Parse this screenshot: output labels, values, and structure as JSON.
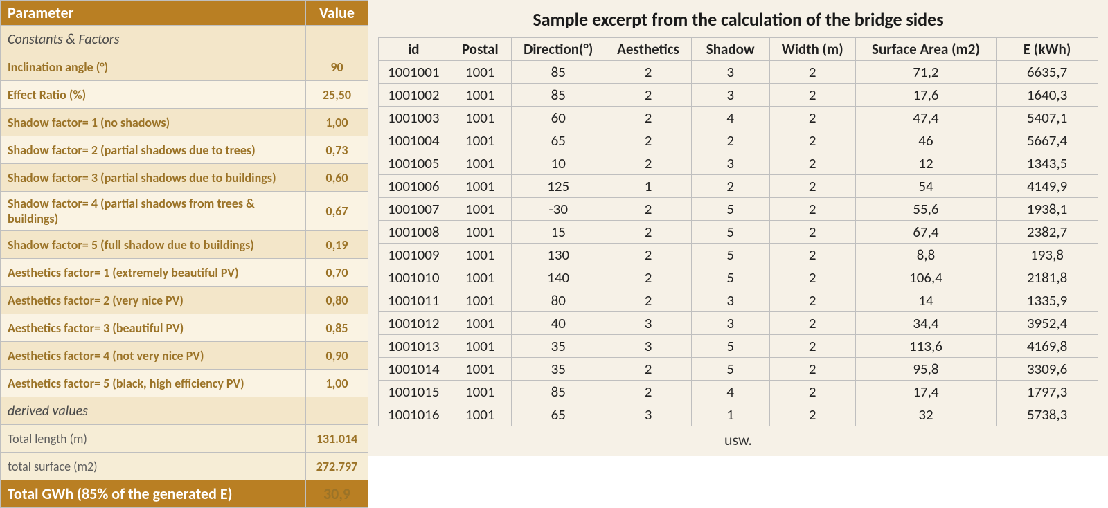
{
  "left": {
    "header": {
      "param": "Parameter",
      "value": "Value"
    },
    "section_constants": "Constants & Factors",
    "rows_constants": [
      {
        "label": "Inclination angle (°)",
        "value": "90",
        "cls": "row-a"
      },
      {
        "label": "Effect Ratio (%)",
        "value": "25,50",
        "cls": "row-b"
      },
      {
        "label": "Shadow factor= 1 (no shadows)",
        "value": "1,00",
        "cls": "row-a"
      },
      {
        "label": "Shadow factor= 2 (partial shadows due to trees)",
        "value": "0,73",
        "cls": "row-b"
      },
      {
        "label": "Shadow factor= 3 (partial shadows due to buildings)",
        "value": "0,60",
        "cls": "row-a"
      },
      {
        "label": "Shadow factor= 4 (partial shadows from trees & buildings)",
        "value": "0,67",
        "cls": "row-b"
      },
      {
        "label": "Shadow factor= 5 (full shadow due to buildings)",
        "value": "0,19",
        "cls": "row-a"
      },
      {
        "label": "Aesthetics factor= 1 (extremely beautiful PV)",
        "value": "0,70",
        "cls": "row-b"
      },
      {
        "label": "Aesthetics factor= 2 (very nice PV)",
        "value": "0,80",
        "cls": "row-a"
      },
      {
        "label": "Aesthetics factor= 3 (beautiful PV)",
        "value": "0,85",
        "cls": "row-b"
      },
      {
        "label": "Aesthetics factor= 4 (not very nice PV)",
        "value": "0,90",
        "cls": "row-a"
      },
      {
        "label": "Aesthetics factor= 5 (black, high efficiency PV)",
        "value": "1,00",
        "cls": "row-b"
      }
    ],
    "section_derived": "derived values",
    "rows_derived": [
      {
        "label": "Total length (m)",
        "value": "131.014",
        "cls": "row-c"
      },
      {
        "label": "total surface (m2)",
        "value": "272.797",
        "cls": "row-c"
      }
    ],
    "total": {
      "label": "Total GWh (85% of the generated E)",
      "value": "30,9"
    }
  },
  "right": {
    "title": "Sample excerpt from the calculation of the bridge sides",
    "columns": [
      "id",
      "Postal",
      "Direction(°)",
      "Aesthetics",
      "Shadow",
      "Width (m)",
      "Surface Area (m2)",
      "E (kWh)"
    ],
    "col_widths_pct": [
      9,
      8,
      12,
      11,
      10,
      11,
      18,
      13
    ],
    "rows": [
      [
        "1001001",
        "1001",
        "85",
        "2",
        "3",
        "2",
        "71,2",
        "6635,7"
      ],
      [
        "1001002",
        "1001",
        "85",
        "2",
        "3",
        "2",
        "17,6",
        "1640,3"
      ],
      [
        "1001003",
        "1001",
        "60",
        "2",
        "4",
        "2",
        "47,4",
        "5407,1"
      ],
      [
        "1001004",
        "1001",
        "65",
        "2",
        "2",
        "2",
        "46",
        "5667,4"
      ],
      [
        "1001005",
        "1001",
        "10",
        "2",
        "3",
        "2",
        "12",
        "1343,5"
      ],
      [
        "1001006",
        "1001",
        "125",
        "1",
        "2",
        "2",
        "54",
        "4149,9"
      ],
      [
        "1001007",
        "1001",
        "-30",
        "2",
        "5",
        "2",
        "55,6",
        "1938,1"
      ],
      [
        "1001008",
        "1001",
        "15",
        "2",
        "5",
        "2",
        "67,4",
        "2382,7"
      ],
      [
        "1001009",
        "1001",
        "130",
        "2",
        "5",
        "2",
        "8,8",
        "193,8"
      ],
      [
        "1001010",
        "1001",
        "140",
        "2",
        "5",
        "2",
        "106,4",
        "2181,8"
      ],
      [
        "1001011",
        "1001",
        "80",
        "2",
        "3",
        "2",
        "14",
        "1335,9"
      ],
      [
        "1001012",
        "1001",
        "40",
        "3",
        "3",
        "2",
        "34,4",
        "3952,4"
      ],
      [
        "1001013",
        "1001",
        "35",
        "3",
        "5",
        "2",
        "113,6",
        "4169,8"
      ],
      [
        "1001014",
        "1001",
        "35",
        "2",
        "5",
        "2",
        "95,8",
        "3309,6"
      ],
      [
        "1001015",
        "1001",
        "85",
        "2",
        "4",
        "2",
        "17,4",
        "1797,3"
      ],
      [
        "1001016",
        "1001",
        "65",
        "3",
        "1",
        "2",
        "32",
        "5738,3"
      ]
    ],
    "footer": "usw."
  },
  "colors": {
    "header_bg": "#b97f23",
    "header_fg": "#ffffff",
    "row_a_bg": "#f3e6c9",
    "row_b_bg": "#faf3e3",
    "row_c_bg": "#f6edd6",
    "grid": "#bfbfbf",
    "right_bg": "#f6f1e7",
    "param_text": "#9b7327"
  }
}
